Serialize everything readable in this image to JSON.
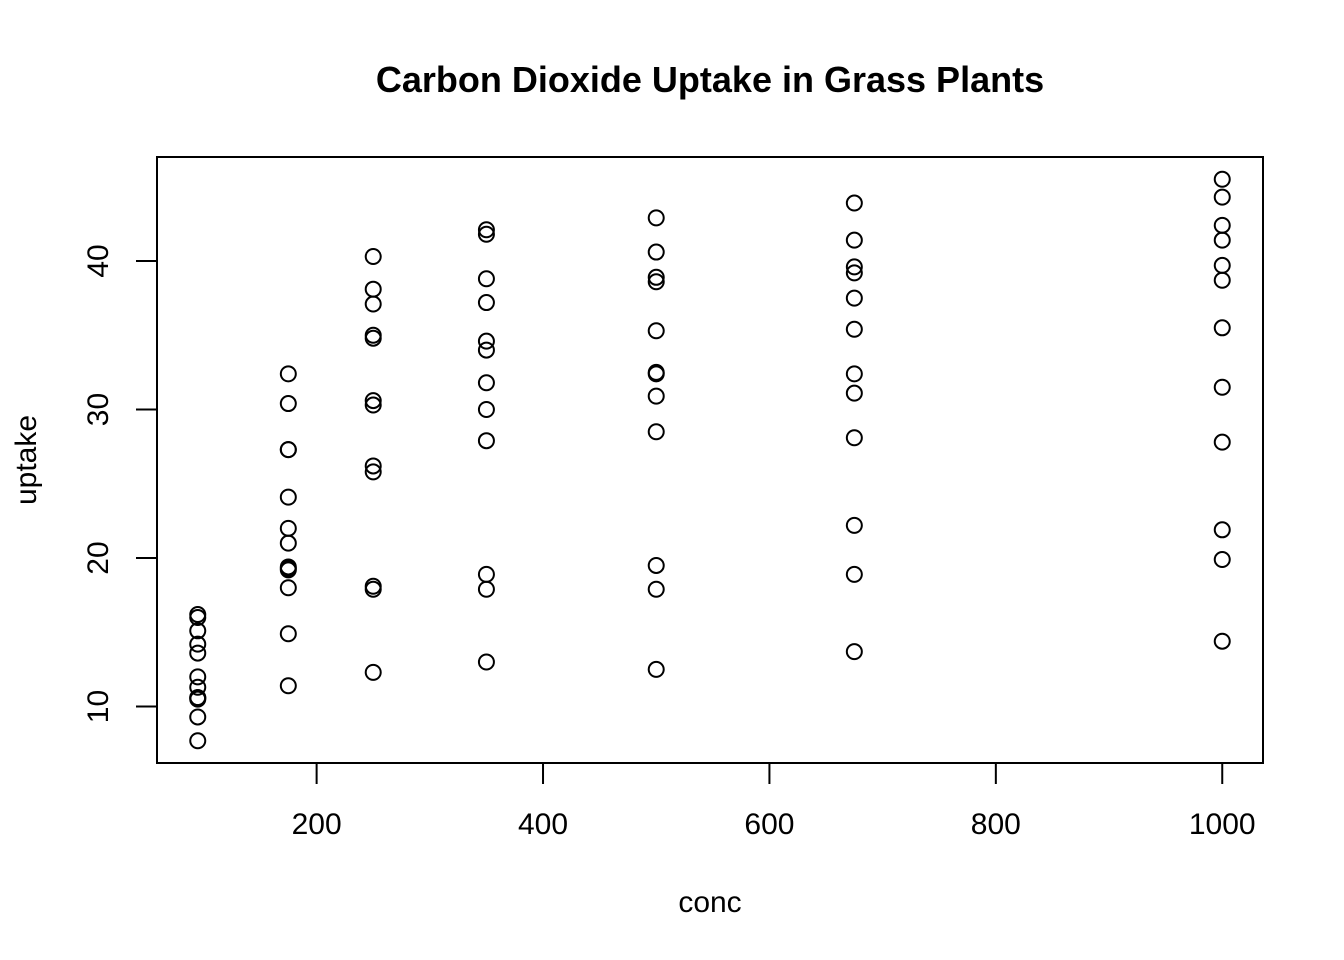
{
  "chart_data": {
    "type": "scatter",
    "title": "Carbon Dioxide Uptake in Grass Plants",
    "xlabel": "conc",
    "ylabel": "uptake",
    "xlim": [
      59,
      1036
    ],
    "ylim": [
      6.2,
      47.0
    ],
    "xticks": [
      200,
      400,
      600,
      800,
      1000
    ],
    "yticks": [
      10,
      20,
      30,
      40
    ],
    "grid": false,
    "legend": "none",
    "points": [
      {
        "x": 95,
        "y": 16.0
      },
      {
        "x": 95,
        "y": 13.6
      },
      {
        "x": 95,
        "y": 16.2
      },
      {
        "x": 95,
        "y": 14.2
      },
      {
        "x": 95,
        "y": 9.3
      },
      {
        "x": 95,
        "y": 15.1
      },
      {
        "x": 95,
        "y": 10.6
      },
      {
        "x": 95,
        "y": 12.0
      },
      {
        "x": 95,
        "y": 11.3
      },
      {
        "x": 95,
        "y": 10.5
      },
      {
        "x": 95,
        "y": 7.7
      },
      {
        "x": 95,
        "y": 10.6
      },
      {
        "x": 175,
        "y": 30.4
      },
      {
        "x": 175,
        "y": 27.3
      },
      {
        "x": 175,
        "y": 32.4
      },
      {
        "x": 175,
        "y": 24.1
      },
      {
        "x": 175,
        "y": 19.4
      },
      {
        "x": 175,
        "y": 19.3
      },
      {
        "x": 175,
        "y": 18.0
      },
      {
        "x": 175,
        "y": 22.0
      },
      {
        "x": 175,
        "y": 21.0
      },
      {
        "x": 175,
        "y": 11.4
      },
      {
        "x": 175,
        "y": 14.9
      },
      {
        "x": 175,
        "y": 19.2
      },
      {
        "x": 175,
        "y": 27.3
      },
      {
        "x": 250,
        "y": 34.8
      },
      {
        "x": 250,
        "y": 37.1
      },
      {
        "x": 250,
        "y": 40.3
      },
      {
        "x": 250,
        "y": 38.1
      },
      {
        "x": 250,
        "y": 30.3
      },
      {
        "x": 250,
        "y": 30.6
      },
      {
        "x": 250,
        "y": 26.2
      },
      {
        "x": 250,
        "y": 25.8
      },
      {
        "x": 250,
        "y": 17.9
      },
      {
        "x": 250,
        "y": 18.1
      },
      {
        "x": 250,
        "y": 12.3
      },
      {
        "x": 250,
        "y": 35.0
      },
      {
        "x": 350,
        "y": 37.2
      },
      {
        "x": 350,
        "y": 41.8
      },
      {
        "x": 350,
        "y": 42.1
      },
      {
        "x": 350,
        "y": 34.6
      },
      {
        "x": 350,
        "y": 34.0
      },
      {
        "x": 350,
        "y": 38.8
      },
      {
        "x": 350,
        "y": 31.8
      },
      {
        "x": 350,
        "y": 30.0
      },
      {
        "x": 350,
        "y": 27.9
      },
      {
        "x": 350,
        "y": 17.9
      },
      {
        "x": 350,
        "y": 18.9
      },
      {
        "x": 350,
        "y": 13.0
      },
      {
        "x": 500,
        "y": 35.3
      },
      {
        "x": 500,
        "y": 40.6
      },
      {
        "x": 500,
        "y": 42.9
      },
      {
        "x": 500,
        "y": 38.9
      },
      {
        "x": 500,
        "y": 32.4
      },
      {
        "x": 500,
        "y": 32.5
      },
      {
        "x": 500,
        "y": 28.5
      },
      {
        "x": 500,
        "y": 30.9
      },
      {
        "x": 500,
        "y": 17.9
      },
      {
        "x": 500,
        "y": 19.5
      },
      {
        "x": 500,
        "y": 12.5
      },
      {
        "x": 500,
        "y": 38.6
      },
      {
        "x": 675,
        "y": 39.2
      },
      {
        "x": 675,
        "y": 41.4
      },
      {
        "x": 675,
        "y": 43.9
      },
      {
        "x": 675,
        "y": 37.5
      },
      {
        "x": 675,
        "y": 35.4
      },
      {
        "x": 675,
        "y": 32.4
      },
      {
        "x": 675,
        "y": 31.1
      },
      {
        "x": 675,
        "y": 28.1
      },
      {
        "x": 675,
        "y": 18.9
      },
      {
        "x": 675,
        "y": 22.2
      },
      {
        "x": 675,
        "y": 13.7
      },
      {
        "x": 675,
        "y": 39.6
      },
      {
        "x": 1000,
        "y": 39.7
      },
      {
        "x": 1000,
        "y": 44.3
      },
      {
        "x": 1000,
        "y": 45.5
      },
      {
        "x": 1000,
        "y": 42.4
      },
      {
        "x": 1000,
        "y": 41.4
      },
      {
        "x": 1000,
        "y": 35.5
      },
      {
        "x": 1000,
        "y": 31.5
      },
      {
        "x": 1000,
        "y": 27.8
      },
      {
        "x": 1000,
        "y": 21.9
      },
      {
        "x": 1000,
        "y": 14.4
      },
      {
        "x": 1000,
        "y": 19.9
      },
      {
        "x": 1000,
        "y": 38.7
      }
    ]
  }
}
